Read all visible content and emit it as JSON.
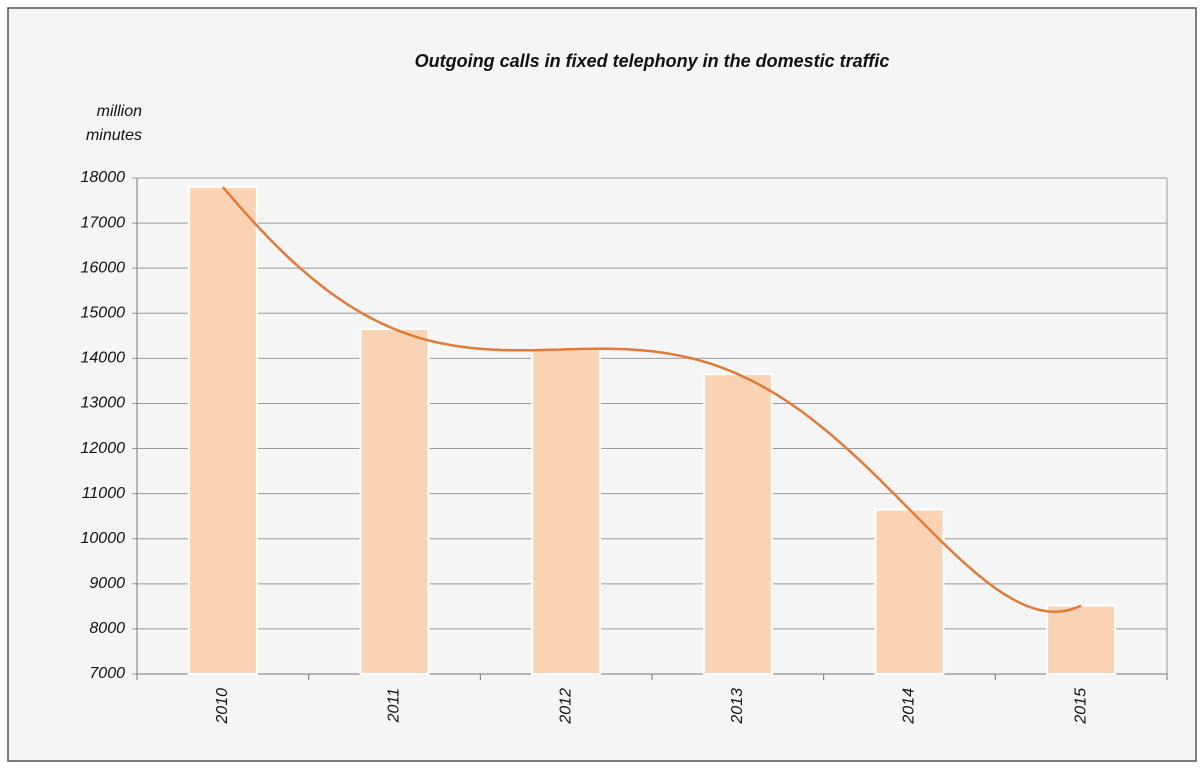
{
  "chart_data": {
    "type": "bar",
    "title": "Outgoing calls in fixed telephony in the domestic traffic",
    "y_label": [
      "million",
      "minutes"
    ],
    "categories": [
      "2010",
      "2011",
      "2012",
      "2013",
      "2014",
      "2015"
    ],
    "values": [
      17800,
      14650,
      14200,
      13650,
      10650,
      8520
    ],
    "color": "#f9d3b4",
    "trend_color": "#e07b39",
    "ylim": [
      7000,
      18000
    ],
    "yticks": [
      7000,
      8000,
      9000,
      10000,
      11000,
      12000,
      13000,
      14000,
      15000,
      16000,
      17000,
      18000
    ],
    "grid": true
  }
}
